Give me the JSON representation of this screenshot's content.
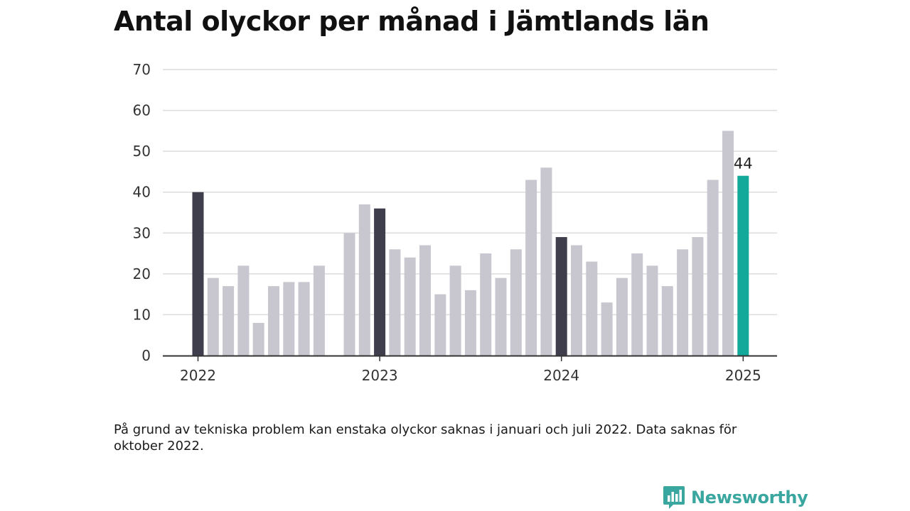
{
  "chart_data": {
    "type": "bar",
    "title": "Antal olyckor per månad i Jämtlands län",
    "xlabel": "",
    "ylabel": "",
    "ylim": [
      0,
      70
    ],
    "yticks": [
      "0",
      "10",
      "20",
      "30",
      "40",
      "50",
      "60",
      "70"
    ],
    "xticks": [
      "2022",
      "2023",
      "2024",
      "2025"
    ],
    "grid": true,
    "categories": [
      "2022-01",
      "2022-02",
      "2022-03",
      "2022-04",
      "2022-05",
      "2022-06",
      "2022-07",
      "2022-08",
      "2022-09",
      "2022-10",
      "2022-11",
      "2022-12",
      "2023-01",
      "2023-02",
      "2023-03",
      "2023-04",
      "2023-05",
      "2023-06",
      "2023-07",
      "2023-08",
      "2023-09",
      "2023-10",
      "2023-11",
      "2023-12",
      "2024-01",
      "2024-02",
      "2024-03",
      "2024-04",
      "2024-05",
      "2024-06",
      "2024-07",
      "2024-08",
      "2024-09",
      "2024-10",
      "2024-11",
      "2024-12",
      "2025-01"
    ],
    "values": [
      40,
      19,
      17,
      22,
      8,
      17,
      18,
      18,
      22,
      null,
      30,
      37,
      36,
      26,
      24,
      27,
      15,
      22,
      16,
      25,
      19,
      26,
      43,
      46,
      29,
      27,
      23,
      13,
      19,
      25,
      22,
      17,
      26,
      29,
      43,
      55,
      44
    ],
    "highlight_value_label": "44",
    "colors": {
      "regular": "#c8c7cf",
      "january": "#3f3e4c",
      "latest": "#12a89a",
      "grid": "#dcdcdc",
      "axis": "#333333"
    }
  },
  "note": "På grund av tekniska problem kan enstaka olyckor saknas i januari och juli 2022. Data saknas för oktober 2022.",
  "brand": {
    "name": "Newsworthy",
    "icon": "newsworthy-logo-icon",
    "color": "#3aa6a0"
  }
}
